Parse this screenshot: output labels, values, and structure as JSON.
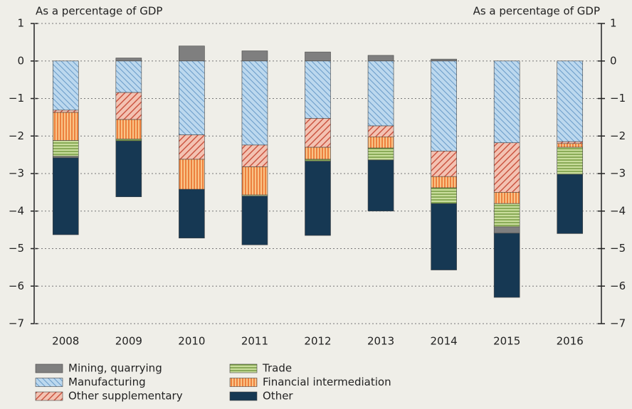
{
  "chart_data": {
    "type": "stacked_bar",
    "ylabel": "As a percentage of GDP",
    "y2label": "As a percentage of GDP",
    "categories": [
      "2008",
      "2009",
      "2010",
      "2011",
      "2012",
      "2013",
      "2014",
      "2015",
      "2016"
    ],
    "series": [
      {
        "name": "Manufacturing",
        "color": "#bcd8ee",
        "values": [
          -1.31,
          -0.84,
          -1.97,
          -2.24,
          -1.53,
          -1.73,
          -2.4,
          -2.18,
          -2.15
        ]
      },
      {
        "name": "Other supplementary",
        "color": "#f3c2b2",
        "values": [
          -0.06,
          -0.72,
          -0.65,
          -0.58,
          -0.77,
          -0.29,
          -0.68,
          -1.32,
          -0.05
        ]
      },
      {
        "name": "Financial intermediation",
        "color": "#f9c487",
        "values": [
          -0.75,
          -0.52,
          -0.8,
          -0.75,
          -0.32,
          -0.3,
          -0.3,
          -0.3,
          -0.1
        ]
      },
      {
        "name": "Trade",
        "color": "#c9dd9c",
        "values": [
          -0.42,
          -0.05,
          0,
          -0.03,
          -0.05,
          -0.32,
          -0.42,
          -0.62,
          -0.72
        ]
      },
      {
        "name": "Mining, quarrying",
        "color": "#7f7f7f",
        "values": [
          -0.04,
          0.08,
          0.4,
          0.27,
          0.24,
          0.15,
          0.05,
          -0.17,
          0
        ]
      },
      {
        "name": "Other",
        "color": "#163853",
        "values": [
          -2.05,
          -1.49,
          -1.3,
          -1.3,
          -1.98,
          -1.36,
          -1.77,
          -1.71,
          -1.58
        ]
      }
    ],
    "ylim": [
      -7,
      1
    ],
    "yticks": [
      1,
      0,
      {
        "value": -1,
        "label": "−1"
      },
      {
        "value": -2,
        "label": "−2"
      },
      {
        "value": -3,
        "label": "−3"
      },
      {
        "value": -4,
        "label": "−4"
      },
      {
        "value": -5,
        "label": "−5"
      },
      {
        "value": -6,
        "label": "−6"
      },
      {
        "value": -7,
        "label": "−7"
      }
    ],
    "y2lim": [
      -7,
      1
    ],
    "y2ticks": [
      1,
      0,
      {
        "value": -1,
        "label": "−1"
      },
      {
        "value": -2,
        "label": "−2"
      },
      {
        "value": -3,
        "label": "−3"
      },
      {
        "value": -4,
        "label": "−4"
      },
      {
        "value": -5,
        "label": "−5"
      },
      {
        "value": -6,
        "label": "−6"
      },
      {
        "value": -7,
        "label": "−7"
      }
    ],
    "grid": true
  }
}
